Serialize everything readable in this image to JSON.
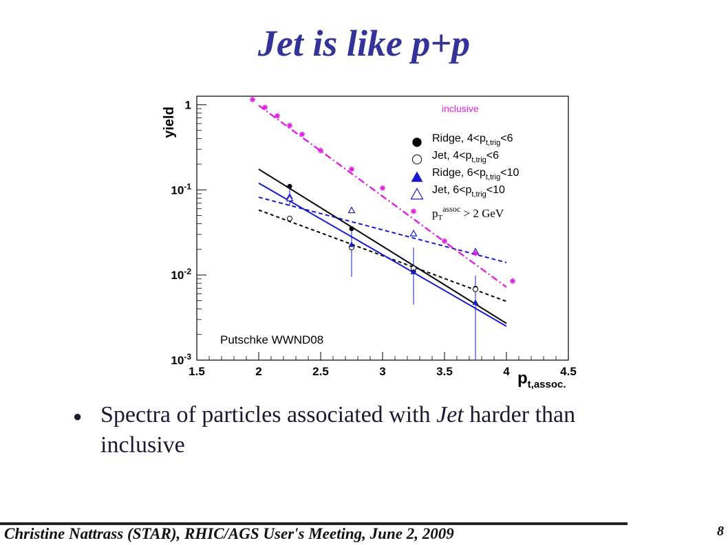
{
  "slide": {
    "title": "Jet is like p+p",
    "bullet": {
      "pre": "Spectra of particles associated with ",
      "emph": "Jet",
      "post": " harder than inclusive"
    },
    "footer": "Christine Nattrass (STAR), RHIC/AGS User's Meeting, June 2, 2009",
    "page_number": "8"
  },
  "chart_data": {
    "type": "scatter",
    "ylabel": "yield",
    "xlabel_main": "p",
    "xlabel_sub": "t,assoc.",
    "x_ticks": [
      "1.5",
      "2",
      "2.5",
      "3",
      "3.5",
      "4",
      "4.5"
    ],
    "y_ticks": [
      {
        "base": "1",
        "exp": ""
      },
      {
        "base": "10",
        "exp": "-1"
      },
      {
        "base": "10",
        "exp": "-2"
      },
      {
        "base": "10",
        "exp": "-3"
      }
    ],
    "xlim": [
      1.5,
      4.5
    ],
    "ylog_lim": [
      -3,
      0.1
    ],
    "y_scale": "log",
    "legend_position": "top-right",
    "legend": [
      {
        "pre": "Ridge, 4<p",
        "sub": "t,trig",
        "post": "<6",
        "marker": "filled-circle",
        "color": "#000000"
      },
      {
        "pre": "Jet, 4<p",
        "sub": "t,trig",
        "post": "<6",
        "marker": "open-circle",
        "color": "#000000"
      },
      {
        "pre": "Ridge, 6<p",
        "sub": "t,trig",
        "post": "<10",
        "marker": "filled-triangle",
        "color": "#1a1acc"
      },
      {
        "pre": "Jet, 6<p",
        "sub": "t,trig",
        "post": "<10",
        "marker": "open-triangle",
        "color": "#1a1acc"
      }
    ],
    "annotations": {
      "inclusive": "inclusive",
      "cut_pre": "p",
      "cut_sub": "T",
      "cut_sup": "assoc",
      "cut_post": " > 2 GeV",
      "credit": "Putschke WWND08"
    },
    "series": [
      {
        "name": "Ridge, 4<pt,trig<6",
        "marker": "filled-circle",
        "color": "#000000",
        "x": [
          2.25,
          2.75,
          3.25,
          3.75
        ],
        "y": [
          0.11,
          0.035,
          0.011,
          0.007
        ]
      },
      {
        "name": "Jet, 4<pt,trig<6",
        "marker": "open-circle",
        "color": "#000000",
        "x": [
          2.25,
          2.75,
          3.25,
          3.75
        ],
        "y": [
          0.046,
          0.021,
          0.012,
          0.0068
        ]
      },
      {
        "name": "Ridge, 6<pt,trig<10",
        "marker": "filled-triangle",
        "color": "#1a1acc",
        "x": [
          2.25,
          2.75,
          3.25,
          3.75
        ],
        "y": [
          0.085,
          0.023,
          0.011,
          0.0048
        ],
        "err_lo": [
          0.065,
          0.0095,
          0.0045,
          0.0009
        ],
        "err_hi": [
          0.105,
          0.034,
          0.021,
          0.0098
        ]
      },
      {
        "name": "Jet, 6<pt,trig<10",
        "marker": "open-triangle",
        "color": "#1a1acc",
        "x": [
          2.25,
          2.75,
          3.25,
          3.75
        ],
        "y": [
          0.08,
          0.058,
          0.031,
          0.019
        ]
      },
      {
        "name": "inclusive",
        "marker": "star",
        "color": "#e020e0",
        "x": [
          1.95,
          2.05,
          2.15,
          2.25,
          2.35,
          2.5,
          2.75,
          3.0,
          3.25,
          3.5,
          3.75,
          4.05
        ],
        "y": [
          1.15,
          0.93,
          0.74,
          0.57,
          0.45,
          0.29,
          0.175,
          0.105,
          0.056,
          0.025,
          0.018,
          0.0085
        ]
      }
    ],
    "fits": [
      {
        "name": "Ridge, 4<pt,trig<6",
        "color": "#000000",
        "dash": "",
        "x": [
          2.0,
          4.0
        ],
        "y": [
          0.175,
          0.0027
        ]
      },
      {
        "name": "Jet, 4<pt,trig<6",
        "color": "#000000",
        "dash": "5,4",
        "x": [
          2.0,
          4.0
        ],
        "y": [
          0.058,
          0.0049
        ]
      },
      {
        "name": "Ridge, 6<pt,trig<10",
        "color": "#1a1acc",
        "dash": "",
        "x": [
          2.0,
          4.0
        ],
        "y": [
          0.12,
          0.0025
        ]
      },
      {
        "name": "Jet, 6<pt,trig<10",
        "color": "#1a1acc",
        "dash": "6,4",
        "x": [
          2.0,
          4.0
        ],
        "y": [
          0.082,
          0.014
        ]
      },
      {
        "name": "inclusive",
        "color": "#e020e0",
        "dash": "10,4,2,4",
        "x": [
          2.0,
          4.0
        ],
        "y": [
          0.98,
          0.0072
        ]
      }
    ]
  }
}
